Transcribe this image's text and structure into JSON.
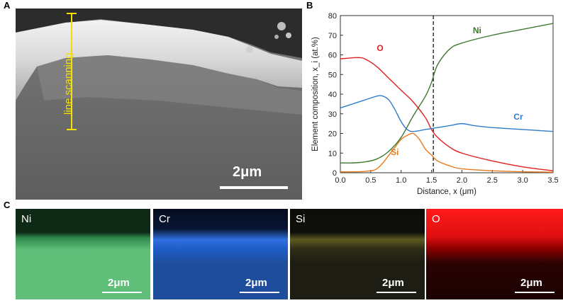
{
  "panel_a": {
    "letter": "A",
    "annotation": "line scanning",
    "scale": "2μm"
  },
  "panel_b": {
    "letter": "B"
  },
  "panel_c": {
    "letter": "C",
    "maps": [
      {
        "label": "Ni",
        "scale": "2μm",
        "color": "#5fbe78"
      },
      {
        "label": "Cr",
        "scale": "2μm",
        "color": "#1e4d9c"
      },
      {
        "label": "Si",
        "scale": "2μm",
        "color": "#1d1d14"
      },
      {
        "label": "O",
        "scale": "2μm",
        "color": "#e01010"
      }
    ]
  },
  "chart_data": {
    "type": "line",
    "xlabel": "Distance, x (μm)",
    "ylabel": "Element composition, x_i (at.%)",
    "xlim": [
      0,
      3.5
    ],
    "ylim": [
      0,
      80
    ],
    "xticks": [
      "0.0",
      "0.5",
      "1.0",
      "1.5",
      "2.0",
      "2.5",
      "3.0",
      "3.5"
    ],
    "yticks": [
      "0",
      "10",
      "20",
      "30",
      "40",
      "50",
      "60",
      "70",
      "80"
    ],
    "vline_x": 1.53,
    "series": [
      {
        "name": "Ni",
        "color": "#3c7a2e",
        "x": [
          0,
          0.2,
          0.4,
          0.6,
          0.8,
          1.0,
          1.2,
          1.4,
          1.5,
          1.6,
          1.8,
          2.0,
          2.5,
          3.0,
          3.5
        ],
        "y": [
          5,
          5,
          5.5,
          7,
          11,
          18,
          29,
          39,
          46,
          55,
          63,
          66,
          70,
          73,
          76
        ]
      },
      {
        "name": "O",
        "color": "#e02020",
        "x": [
          0,
          0.2,
          0.3,
          0.4,
          0.6,
          0.8,
          1.0,
          1.2,
          1.4,
          1.5,
          1.6,
          1.8,
          2.0,
          2.5,
          3.0,
          3.5
        ],
        "y": [
          58,
          58.5,
          58.6,
          58,
          54,
          48,
          42,
          36,
          28,
          22,
          18,
          13,
          10,
          6,
          3,
          1
        ]
      },
      {
        "name": "Cr",
        "color": "#2f7cc8",
        "x": [
          0,
          0.2,
          0.4,
          0.6,
          0.7,
          0.8,
          0.9,
          1.0,
          1.1,
          1.2,
          1.4,
          1.6,
          1.8,
          2.0,
          2.2,
          2.5,
          3.0,
          3.5
        ],
        "y": [
          33,
          35,
          37,
          39,
          39,
          37,
          32,
          26,
          22,
          21,
          22,
          23,
          24,
          25,
          24,
          23,
          22,
          21
        ]
      },
      {
        "name": "Si",
        "color": "#e87a1e",
        "x": [
          0,
          0.3,
          0.5,
          0.6,
          0.7,
          0.8,
          0.9,
          1.0,
          1.1,
          1.2,
          1.3,
          1.4,
          1.5,
          1.6,
          1.8,
          2.0,
          2.5,
          3.0,
          3.5
        ],
        "y": [
          0.5,
          0.5,
          1,
          2,
          5,
          9,
          13,
          17,
          19,
          20,
          17,
          12,
          9,
          6,
          3.5,
          2,
          1,
          0.5,
          0.3
        ]
      }
    ],
    "labels": {
      "Ni": "Ni",
      "O": "O",
      "Cr": "Cr",
      "Si": "Si"
    }
  }
}
